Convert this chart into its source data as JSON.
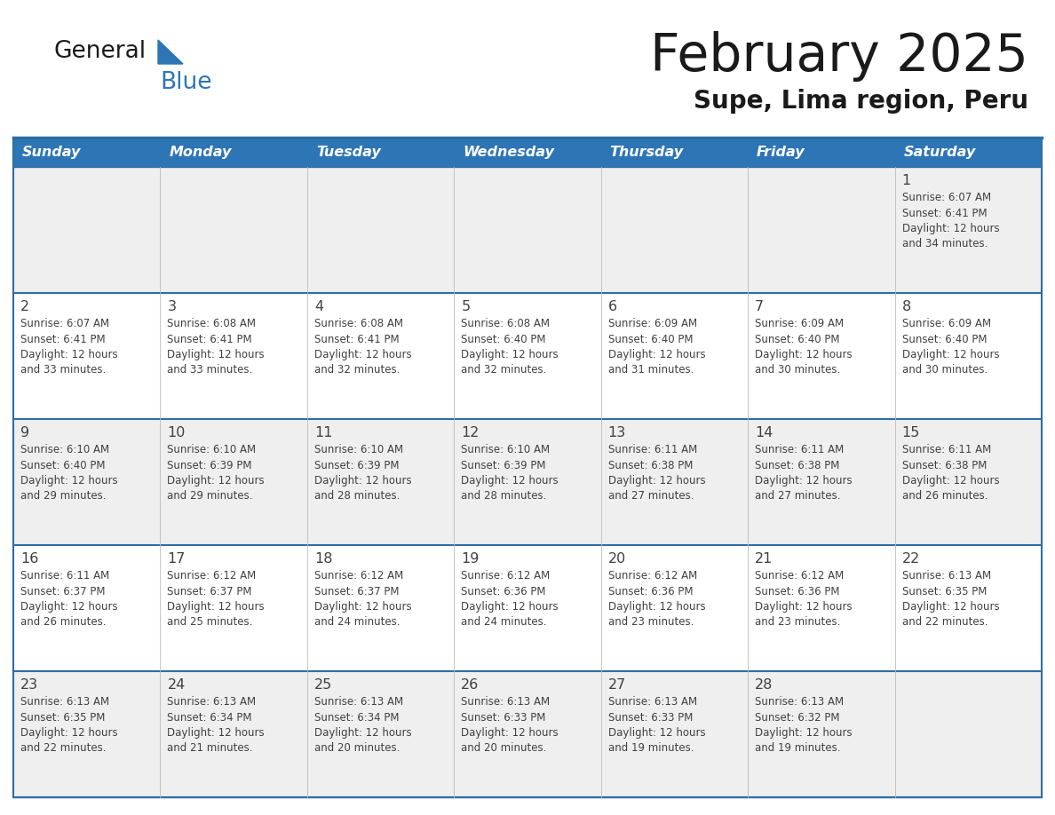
{
  "title": "February 2025",
  "subtitle": "Supe, Lima region, Peru",
  "header_color": "#2E75B6",
  "header_text_color": "#FFFFFF",
  "day_names": [
    "Sunday",
    "Monday",
    "Tuesday",
    "Wednesday",
    "Thursday",
    "Friday",
    "Saturday"
  ],
  "background_color": "#FFFFFF",
  "cell_bg_odd": "#EFEFEF",
  "cell_bg_even": "#FFFFFF",
  "text_color": "#404040",
  "line_color": "#2E6DA4",
  "logo_general_color": "#1a1a1a",
  "logo_blue_color": "#2E75B6",
  "logo_triangle_color": "#2E75B6",
  "days": [
    {
      "day": 1,
      "col": 6,
      "row": 0,
      "sunrise": "6:07 AM",
      "sunset": "6:41 PM",
      "daylight": "12 hours and 34 minutes."
    },
    {
      "day": 2,
      "col": 0,
      "row": 1,
      "sunrise": "6:07 AM",
      "sunset": "6:41 PM",
      "daylight": "12 hours and 33 minutes."
    },
    {
      "day": 3,
      "col": 1,
      "row": 1,
      "sunrise": "6:08 AM",
      "sunset": "6:41 PM",
      "daylight": "12 hours and 33 minutes."
    },
    {
      "day": 4,
      "col": 2,
      "row": 1,
      "sunrise": "6:08 AM",
      "sunset": "6:41 PM",
      "daylight": "12 hours and 32 minutes."
    },
    {
      "day": 5,
      "col": 3,
      "row": 1,
      "sunrise": "6:08 AM",
      "sunset": "6:40 PM",
      "daylight": "12 hours and 32 minutes."
    },
    {
      "day": 6,
      "col": 4,
      "row": 1,
      "sunrise": "6:09 AM",
      "sunset": "6:40 PM",
      "daylight": "12 hours and 31 minutes."
    },
    {
      "day": 7,
      "col": 5,
      "row": 1,
      "sunrise": "6:09 AM",
      "sunset": "6:40 PM",
      "daylight": "12 hours and 30 minutes."
    },
    {
      "day": 8,
      "col": 6,
      "row": 1,
      "sunrise": "6:09 AM",
      "sunset": "6:40 PM",
      "daylight": "12 hours and 30 minutes."
    },
    {
      "day": 9,
      "col": 0,
      "row": 2,
      "sunrise": "6:10 AM",
      "sunset": "6:40 PM",
      "daylight": "12 hours and 29 minutes."
    },
    {
      "day": 10,
      "col": 1,
      "row": 2,
      "sunrise": "6:10 AM",
      "sunset": "6:39 PM",
      "daylight": "12 hours and 29 minutes."
    },
    {
      "day": 11,
      "col": 2,
      "row": 2,
      "sunrise": "6:10 AM",
      "sunset": "6:39 PM",
      "daylight": "12 hours and 28 minutes."
    },
    {
      "day": 12,
      "col": 3,
      "row": 2,
      "sunrise": "6:10 AM",
      "sunset": "6:39 PM",
      "daylight": "12 hours and 28 minutes."
    },
    {
      "day": 13,
      "col": 4,
      "row": 2,
      "sunrise": "6:11 AM",
      "sunset": "6:38 PM",
      "daylight": "12 hours and 27 minutes."
    },
    {
      "day": 14,
      "col": 5,
      "row": 2,
      "sunrise": "6:11 AM",
      "sunset": "6:38 PM",
      "daylight": "12 hours and 27 minutes."
    },
    {
      "day": 15,
      "col": 6,
      "row": 2,
      "sunrise": "6:11 AM",
      "sunset": "6:38 PM",
      "daylight": "12 hours and 26 minutes."
    },
    {
      "day": 16,
      "col": 0,
      "row": 3,
      "sunrise": "6:11 AM",
      "sunset": "6:37 PM",
      "daylight": "12 hours and 26 minutes."
    },
    {
      "day": 17,
      "col": 1,
      "row": 3,
      "sunrise": "6:12 AM",
      "sunset": "6:37 PM",
      "daylight": "12 hours and 25 minutes."
    },
    {
      "day": 18,
      "col": 2,
      "row": 3,
      "sunrise": "6:12 AM",
      "sunset": "6:37 PM",
      "daylight": "12 hours and 24 minutes."
    },
    {
      "day": 19,
      "col": 3,
      "row": 3,
      "sunrise": "6:12 AM",
      "sunset": "6:36 PM",
      "daylight": "12 hours and 24 minutes."
    },
    {
      "day": 20,
      "col": 4,
      "row": 3,
      "sunrise": "6:12 AM",
      "sunset": "6:36 PM",
      "daylight": "12 hours and 23 minutes."
    },
    {
      "day": 21,
      "col": 5,
      "row": 3,
      "sunrise": "6:12 AM",
      "sunset": "6:36 PM",
      "daylight": "12 hours and 23 minutes."
    },
    {
      "day": 22,
      "col": 6,
      "row": 3,
      "sunrise": "6:13 AM",
      "sunset": "6:35 PM",
      "daylight": "12 hours and 22 minutes."
    },
    {
      "day": 23,
      "col": 0,
      "row": 4,
      "sunrise": "6:13 AM",
      "sunset": "6:35 PM",
      "daylight": "12 hours and 22 minutes."
    },
    {
      "day": 24,
      "col": 1,
      "row": 4,
      "sunrise": "6:13 AM",
      "sunset": "6:34 PM",
      "daylight": "12 hours and 21 minutes."
    },
    {
      "day": 25,
      "col": 2,
      "row": 4,
      "sunrise": "6:13 AM",
      "sunset": "6:34 PM",
      "daylight": "12 hours and 20 minutes."
    },
    {
      "day": 26,
      "col": 3,
      "row": 4,
      "sunrise": "6:13 AM",
      "sunset": "6:33 PM",
      "daylight": "12 hours and 20 minutes."
    },
    {
      "day": 27,
      "col": 4,
      "row": 4,
      "sunrise": "6:13 AM",
      "sunset": "6:33 PM",
      "daylight": "12 hours and 19 minutes."
    },
    {
      "day": 28,
      "col": 5,
      "row": 4,
      "sunrise": "6:13 AM",
      "sunset": "6:32 PM",
      "daylight": "12 hours and 19 minutes."
    }
  ]
}
